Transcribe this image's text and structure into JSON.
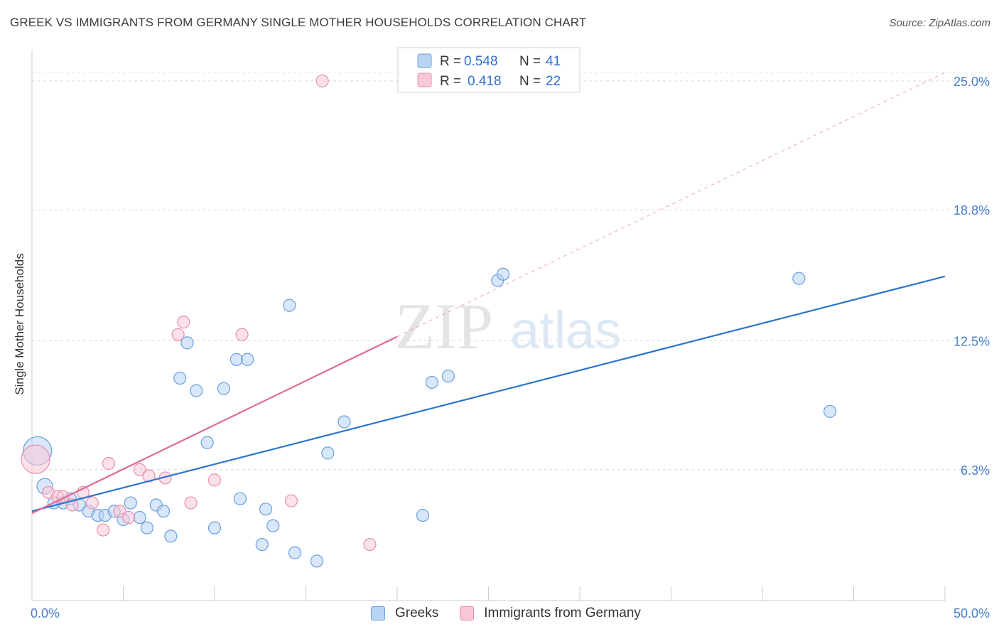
{
  "header": {
    "title": "GREEK VS IMMIGRANTS FROM GERMANY SINGLE MOTHER HOUSEHOLDS CORRELATION CHART",
    "source": "Source: ZipAtlas.com"
  },
  "watermark": {
    "zip": "ZIP",
    "atlas": "atlas"
  },
  "colors": {
    "greeks_fill": "#b8d3f5",
    "greeks_stroke": "#6a9fdc",
    "greeks_line": "#2b74cf",
    "germany_fill": "#f9c8d6",
    "germany_stroke": "#e98fac",
    "germany_line": "#e06b93",
    "tick_label": "#4a7fc9",
    "grid": "#d9d9d9"
  },
  "stats_legend": [
    {
      "r_label": "R = ",
      "r_value": "0.548",
      "n_label": "N = ",
      "n_value": "41"
    },
    {
      "r_label": "R = ",
      "r_value": "0.418",
      "n_label": "N = ",
      "n_value": "22"
    }
  ],
  "chart_data": {
    "type": "scatter",
    "title": "GREEK VS IMMIGRANTS FROM GERMANY SINGLE MOTHER HOUSEHOLDS CORRELATION CHART",
    "xlabel": "",
    "ylabel": "Single Mother Households",
    "xlim": [
      0,
      50
    ],
    "ylim": [
      0,
      26.5
    ],
    "x_tick_labels": [
      "0.0%",
      "50.0%"
    ],
    "y_ticks": [
      6.3,
      12.5,
      18.8,
      25.0
    ],
    "y_tick_labels": [
      "6.3%",
      "12.5%",
      "18.8%",
      "25.0%"
    ],
    "grid": true,
    "legend_position": "bottom-center",
    "series": [
      {
        "name": "Greeks",
        "trend": {
          "x0": 0,
          "y0": 4.3,
          "x1": 50,
          "y1": 15.6,
          "style": "solid"
        },
        "points": [
          {
            "x": 0.3,
            "y": 7.2,
            "size": "large"
          },
          {
            "x": 0.7,
            "y": 5.5,
            "size": "medium"
          },
          {
            "x": 1.2,
            "y": 4.7
          },
          {
            "x": 1.7,
            "y": 4.7
          },
          {
            "x": 2.1,
            "y": 4.9
          },
          {
            "x": 2.6,
            "y": 4.6
          },
          {
            "x": 3.1,
            "y": 4.3
          },
          {
            "x": 3.6,
            "y": 4.1
          },
          {
            "x": 4.0,
            "y": 4.1
          },
          {
            "x": 4.5,
            "y": 4.3
          },
          {
            "x": 5.0,
            "y": 3.9
          },
          {
            "x": 5.4,
            "y": 4.7
          },
          {
            "x": 5.9,
            "y": 4.0
          },
          {
            "x": 6.3,
            "y": 3.5
          },
          {
            "x": 6.8,
            "y": 4.6
          },
          {
            "x": 7.2,
            "y": 4.3
          },
          {
            "x": 7.6,
            "y": 3.1
          },
          {
            "x": 8.1,
            "y": 10.7
          },
          {
            "x": 8.5,
            "y": 12.4
          },
          {
            "x": 9.0,
            "y": 10.1
          },
          {
            "x": 9.6,
            "y": 7.6
          },
          {
            "x": 10.0,
            "y": 3.5
          },
          {
            "x": 10.5,
            "y": 10.2
          },
          {
            "x": 11.2,
            "y": 11.6
          },
          {
            "x": 11.4,
            "y": 4.9
          },
          {
            "x": 11.8,
            "y": 11.6
          },
          {
            "x": 12.6,
            "y": 2.7
          },
          {
            "x": 12.8,
            "y": 4.4
          },
          {
            "x": 13.2,
            "y": 3.6
          },
          {
            "x": 14.1,
            "y": 14.2
          },
          {
            "x": 14.4,
            "y": 2.3
          },
          {
            "x": 15.6,
            "y": 1.9
          },
          {
            "x": 16.2,
            "y": 7.1
          },
          {
            "x": 17.1,
            "y": 8.6
          },
          {
            "x": 21.4,
            "y": 4.1
          },
          {
            "x": 21.9,
            "y": 10.5
          },
          {
            "x": 22.8,
            "y": 10.8
          },
          {
            "x": 25.5,
            "y": 15.4
          },
          {
            "x": 25.8,
            "y": 15.7
          },
          {
            "x": 42.0,
            "y": 15.5
          },
          {
            "x": 43.7,
            "y": 9.1
          }
        ]
      },
      {
        "name": "Immigrants from Germany",
        "trend": {
          "x0": 0,
          "y0": 4.2,
          "x1": 20,
          "y1": 12.7,
          "style": "solid",
          "extension": {
            "x1": 50,
            "y1": 25.4,
            "style": "dashed"
          }
        },
        "points": [
          {
            "x": 0.2,
            "y": 6.8,
            "size": "large"
          },
          {
            "x": 0.9,
            "y": 5.2
          },
          {
            "x": 1.4,
            "y": 5.0
          },
          {
            "x": 1.7,
            "y": 5.0
          },
          {
            "x": 2.2,
            "y": 4.6
          },
          {
            "x": 2.8,
            "y": 5.2
          },
          {
            "x": 3.3,
            "y": 4.7
          },
          {
            "x": 3.9,
            "y": 3.4
          },
          {
            "x": 4.2,
            "y": 6.6
          },
          {
            "x": 4.8,
            "y": 4.3
          },
          {
            "x": 5.3,
            "y": 4.0
          },
          {
            "x": 5.9,
            "y": 6.3
          },
          {
            "x": 6.4,
            "y": 6.0
          },
          {
            "x": 7.3,
            "y": 5.9
          },
          {
            "x": 8.0,
            "y": 12.8
          },
          {
            "x": 8.3,
            "y": 13.4
          },
          {
            "x": 8.7,
            "y": 4.7
          },
          {
            "x": 10.0,
            "y": 5.8
          },
          {
            "x": 11.5,
            "y": 12.8
          },
          {
            "x": 14.2,
            "y": 4.8
          },
          {
            "x": 15.9,
            "y": 25.0
          },
          {
            "x": 18.5,
            "y": 2.7
          }
        ]
      }
    ]
  },
  "bottom_legend": [
    {
      "label": "Greeks"
    },
    {
      "label": "Immigrants from Germany"
    }
  ]
}
